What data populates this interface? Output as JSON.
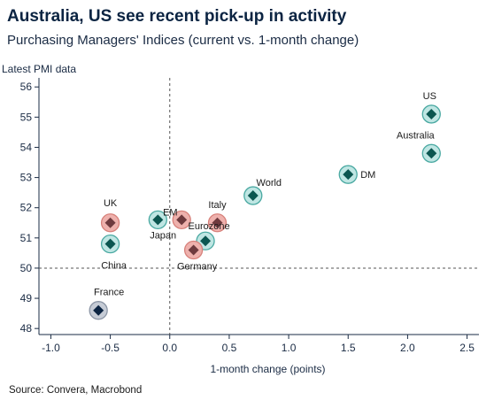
{
  "title": "Australia, US see recent pick-up in activity",
  "subtitle": "Purchasing Managers' Indices (current vs. 1-month change)",
  "source": "Source: Convera, Macrobond",
  "chart_data": {
    "type": "scatter",
    "title": "Australia, US see recent pick-up in activity",
    "subtitle": "Purchasing Managers' Indices (current vs. 1-month change)",
    "xlabel": "1-month change (points)",
    "ylabel": "Latest PMI data",
    "xlim": [
      -1.1,
      2.6
    ],
    "ylim": [
      47.8,
      56.3
    ],
    "xticks": [
      -1.0,
      -0.5,
      0.0,
      0.5,
      1.0,
      1.5,
      2.0,
      2.5
    ],
    "xtick_labels": [
      "-1.0",
      "-0.5",
      "0.0",
      "0.5",
      "1.0",
      "1.5",
      "2.0",
      "2.5"
    ],
    "yticks": [
      48,
      49,
      50,
      51,
      52,
      53,
      54,
      55,
      56
    ],
    "reference_lines": {
      "x": 0,
      "y": 50,
      "style": "dashed"
    },
    "grid": false,
    "colors": {
      "teal_fill": "#bfe6e3",
      "teal_stroke": "#4aa9a2",
      "teal_marker": "#0b5650",
      "red_fill": "#eeb1ad",
      "red_stroke": "#d7807a",
      "red_marker": "#6e3a3e",
      "grey_fill": "#c6ccd6",
      "grey_stroke": "#8b95a5",
      "grey_marker": "#0b2442"
    },
    "points": [
      {
        "label": "US",
        "x": 2.2,
        "y": 55.1,
        "color_group": "teal"
      },
      {
        "label": "Australia",
        "x": 2.2,
        "y": 53.8,
        "color_group": "teal"
      },
      {
        "label": "DM",
        "x": 1.5,
        "y": 53.1,
        "color_group": "teal"
      },
      {
        "label": "World",
        "x": 0.7,
        "y": 52.4,
        "color_group": "teal"
      },
      {
        "label": "EM",
        "x": -0.1,
        "y": 51.6,
        "color_group": "teal"
      },
      {
        "label": "Eurozone",
        "x": 0.3,
        "y": 50.9,
        "color_group": "teal"
      },
      {
        "label": "China",
        "x": -0.5,
        "y": 50.8,
        "color_group": "teal"
      },
      {
        "label": "UK",
        "x": -0.5,
        "y": 51.5,
        "color_group": "red"
      },
      {
        "label": "Italy",
        "x": 0.4,
        "y": 51.5,
        "color_group": "red"
      },
      {
        "label": "Japan",
        "x": 0.1,
        "y": 51.6,
        "color_group": "red"
      },
      {
        "label": "Germany",
        "x": 0.2,
        "y": 50.6,
        "color_group": "red"
      },
      {
        "label": "France",
        "x": -0.6,
        "y": 48.6,
        "color_group": "grey"
      }
    ]
  }
}
